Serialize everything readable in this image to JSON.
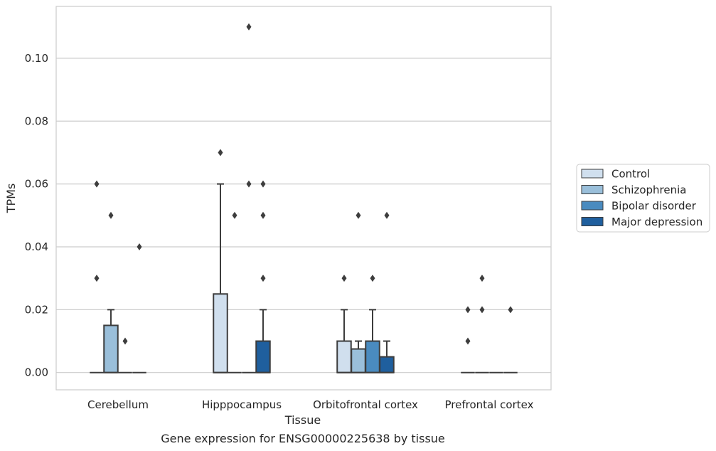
{
  "chart_data": {
    "type": "box",
    "title": "",
    "caption": "Gene expression for ENSG00000225638 by tissue",
    "xlabel": "Tissue",
    "ylabel": "TPMs",
    "ylim": [
      -0.0055,
      0.1165
    ],
    "yticks": [
      "0.00",
      "0.02",
      "0.04",
      "0.06",
      "0.08",
      "0.10"
    ],
    "grid": "horizontal",
    "legend_position": "right",
    "categories": [
      "Cerebellum",
      "Hipppocampus",
      "Orbitofrontal cortex",
      "Prefrontal cortex"
    ],
    "series": [
      {
        "name": "Control",
        "color": "#d0dfee",
        "boxes": [
          {
            "q1": 0,
            "median": 0,
            "q3": 0,
            "whisker_low": 0,
            "whisker_high": 0,
            "outliers": [
              0.03,
              0.06
            ]
          },
          {
            "q1": 0,
            "median": 0,
            "q3": 0.025,
            "whisker_low": 0,
            "whisker_high": 0.06,
            "outliers": [
              0.07
            ]
          },
          {
            "q1": 0,
            "median": 0,
            "q3": 0.01,
            "whisker_low": 0,
            "whisker_high": 0.02,
            "outliers": [
              0.03
            ]
          },
          {
            "q1": 0,
            "median": 0,
            "q3": 0,
            "whisker_low": 0,
            "whisker_high": 0,
            "outliers": [
              0.01,
              0.02
            ]
          }
        ]
      },
      {
        "name": "Schizophrenia",
        "color": "#9abfda",
        "boxes": [
          {
            "q1": 0,
            "median": 0,
            "q3": 0.015,
            "whisker_low": 0,
            "whisker_high": 0.02,
            "outliers": [
              0.05
            ]
          },
          {
            "q1": 0,
            "median": 0,
            "q3": 0,
            "whisker_low": 0,
            "whisker_high": 0,
            "outliers": [
              0.05
            ]
          },
          {
            "q1": 0,
            "median": 0,
            "q3": 0.0075,
            "whisker_low": 0,
            "whisker_high": 0.01,
            "outliers": [
              0.05
            ]
          },
          {
            "q1": 0,
            "median": 0,
            "q3": 0,
            "whisker_low": 0,
            "whisker_high": 0,
            "outliers": [
              0.02,
              0.03
            ]
          }
        ]
      },
      {
        "name": "Bipolar disorder",
        "color": "#4a8bbf",
        "boxes": [
          {
            "q1": 0,
            "median": 0,
            "q3": 0,
            "whisker_low": 0,
            "whisker_high": 0,
            "outliers": [
              0.01
            ]
          },
          {
            "q1": 0,
            "median": 0,
            "q3": 0,
            "whisker_low": 0,
            "whisker_high": 0,
            "outliers": [
              0.06,
              0.11
            ]
          },
          {
            "q1": 0,
            "median": 0,
            "q3": 0.01,
            "whisker_low": 0,
            "whisker_high": 0.02,
            "outliers": [
              0.03
            ]
          },
          {
            "q1": 0,
            "median": 0,
            "q3": 0,
            "whisker_low": 0,
            "whisker_high": 0,
            "outliers": []
          }
        ]
      },
      {
        "name": "Major depression",
        "color": "#1f5f9e",
        "boxes": [
          {
            "q1": 0,
            "median": 0,
            "q3": 0,
            "whisker_low": 0,
            "whisker_high": 0,
            "outliers": [
              0.04
            ]
          },
          {
            "q1": 0,
            "median": 0,
            "q3": 0.01,
            "whisker_low": 0,
            "whisker_high": 0.02,
            "outliers": [
              0.03,
              0.05,
              0.06
            ]
          },
          {
            "q1": 0,
            "median": 0,
            "q3": 0.005,
            "whisker_low": 0,
            "whisker_high": 0.01,
            "outliers": [
              0.05
            ]
          },
          {
            "q1": 0,
            "median": 0,
            "q3": 0,
            "whisker_low": 0,
            "whisker_high": 0,
            "outliers": [
              0.02
            ]
          }
        ]
      }
    ]
  }
}
